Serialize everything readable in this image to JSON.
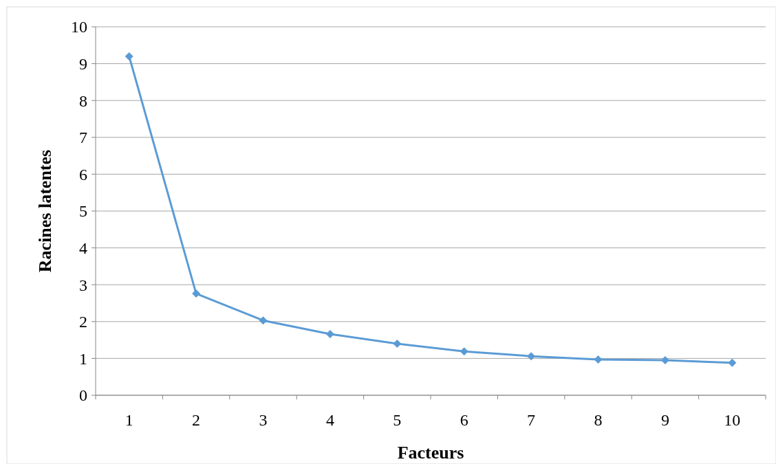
{
  "chart_data": {
    "type": "line",
    "xlabel": "Facteurs",
    "ylabel": "Racines latentes",
    "categories": [
      "1",
      "2",
      "3",
      "4",
      "5",
      "6",
      "7",
      "8",
      "9",
      "10"
    ],
    "series": [
      {
        "color": "#5b9bd5",
        "values": [
          9.2,
          2.76,
          2.03,
          1.66,
          1.4,
          1.19,
          1.06,
          0.97,
          0.95,
          0.88
        ]
      }
    ],
    "ylim": [
      0,
      10
    ],
    "yticks": [
      0,
      1,
      2,
      3,
      4,
      5,
      6,
      7,
      8,
      9,
      10
    ],
    "grid": "y",
    "marker": "diamond",
    "line_style": "solid"
  }
}
